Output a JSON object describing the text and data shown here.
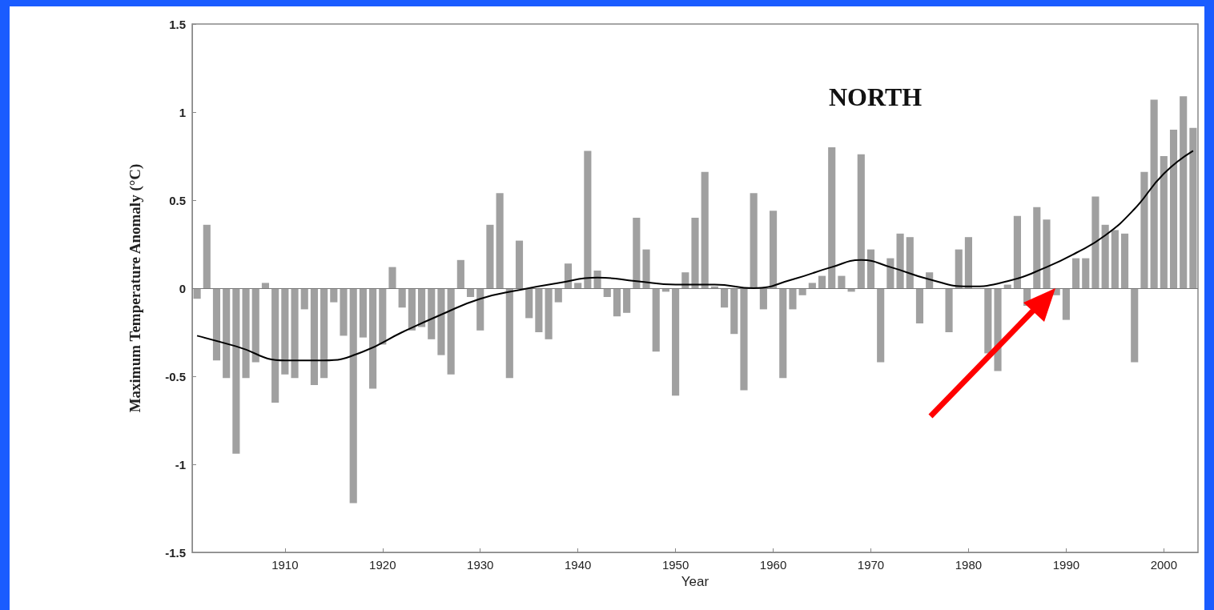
{
  "chart_data": {
    "type": "bar",
    "title": "NORTH",
    "xlabel": "Year",
    "ylabel": "Maximum Temperature Anomaly (°C)",
    "x": [
      1901,
      1902,
      1903,
      1904,
      1905,
      1906,
      1907,
      1908,
      1909,
      1910,
      1911,
      1912,
      1913,
      1914,
      1915,
      1916,
      1917,
      1918,
      1919,
      1920,
      1921,
      1922,
      1923,
      1924,
      1925,
      1926,
      1927,
      1928,
      1929,
      1930,
      1931,
      1932,
      1933,
      1934,
      1935,
      1936,
      1937,
      1938,
      1939,
      1940,
      1941,
      1942,
      1943,
      1944,
      1945,
      1946,
      1947,
      1948,
      1949,
      1950,
      1951,
      1952,
      1953,
      1954,
      1955,
      1956,
      1957,
      1958,
      1959,
      1960,
      1961,
      1962,
      1963,
      1964,
      1965,
      1966,
      1967,
      1968,
      1969,
      1970,
      1971,
      1972,
      1973,
      1974,
      1975,
      1976,
      1977,
      1978,
      1979,
      1980,
      1981,
      1982,
      1983,
      1984,
      1985,
      1986,
      1987,
      1988,
      1989,
      1990,
      1991,
      1992,
      1993,
      1994,
      1995,
      1996,
      1997,
      1998,
      1999,
      2000,
      2001,
      2002,
      2003
    ],
    "series": [
      {
        "color": "#a0a0a0",
        "values": [
          -0.06,
          0.36,
          -0.41,
          -0.51,
          -0.94,
          -0.51,
          -0.42,
          0.03,
          -0.65,
          -0.49,
          -0.51,
          -0.12,
          -0.55,
          -0.51,
          -0.08,
          -0.27,
          -1.22,
          -0.28,
          -0.57,
          -0.32,
          0.12,
          -0.11,
          -0.24,
          -0.22,
          -0.29,
          -0.38,
          -0.49,
          0.16,
          -0.05,
          -0.24,
          0.36,
          0.54,
          -0.51,
          0.27,
          -0.17,
          -0.25,
          -0.29,
          -0.08,
          0.14,
          0.03,
          0.78,
          0.1,
          -0.05,
          -0.16,
          -0.14,
          0.4,
          0.22,
          -0.36,
          -0.02,
          -0.61,
          0.09,
          0.4,
          0.66,
          0.01,
          -0.11,
          -0.26,
          -0.58,
          0.54,
          -0.12,
          0.44,
          -0.51,
          -0.12,
          -0.04,
          0.03,
          0.07,
          0.8,
          0.07,
          -0.02,
          0.76,
          0.22,
          -0.42,
          0.17,
          0.31,
          0.29,
          -0.2,
          0.09,
          null,
          -0.25,
          0.22,
          0.29,
          0.0,
          -0.37,
          -0.47,
          0.02,
          0.41,
          -0.1,
          0.46,
          0.39,
          -0.04,
          -0.18,
          0.17,
          0.17,
          0.52,
          0.36,
          0.33,
          0.31,
          -0.42,
          0.66,
          1.07,
          0.75,
          0.9,
          1.09,
          0.91
        ]
      },
      {
        "type": "line",
        "color": "#000000",
        "x": [
          1901,
          1905,
          1910,
          1914,
          1918,
          1922,
          1926,
          1930,
          1934,
          1938,
          1942,
          1946,
          1950,
          1954,
          1958,
          1962,
          1966,
          1969,
          1972,
          1976,
          1980,
          1984,
          1988,
          1991,
          1994,
          1997,
          2000,
          2003
        ],
        "values": [
          -0.27,
          -0.33,
          -0.41,
          -0.41,
          -0.36,
          -0.25,
          -0.15,
          -0.06,
          -0.01,
          0.03,
          0.06,
          0.04,
          0.02,
          0.02,
          0.0,
          0.05,
          0.12,
          0.16,
          0.12,
          0.05,
          0.01,
          0.04,
          0.12,
          0.2,
          0.3,
          0.45,
          0.65,
          0.78
        ]
      }
    ],
    "xlim": [
      1900.5,
      2003.5
    ],
    "xticks": [
      1910,
      1920,
      1930,
      1940,
      1950,
      1960,
      1970,
      1980,
      1990,
      2000
    ],
    "ylim": [
      -1.5,
      1.5
    ],
    "yticks": [
      -1.5,
      -1,
      -0.5,
      0,
      0.5,
      1,
      1.5
    ],
    "ref_lines": [
      {
        "axis": "y",
        "value": 0,
        "color": "#777777"
      }
    ],
    "grid": false,
    "marker": "none"
  }
}
